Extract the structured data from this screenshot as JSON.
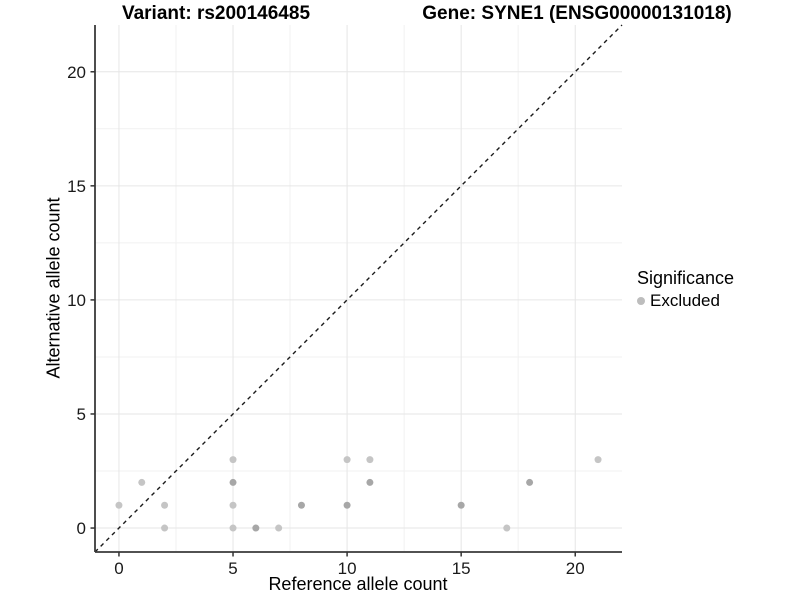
{
  "titles": {
    "left": "Variant: rs200146485",
    "right": "Gene: SYNE1 (ENSG00000131018)"
  },
  "legend": {
    "title": "Significance",
    "items": [
      {
        "label": "Excluded",
        "color": "#bdbdbd"
      }
    ]
  },
  "chart_data": {
    "type": "scatter",
    "title": "Variant: rs200146485 / Gene: SYNE1 (ENSG00000131018)",
    "xlabel": "Reference allele count",
    "ylabel": "Alternative allele count",
    "xlim": [
      -1.05,
      22.05
    ],
    "ylim": [
      -1.05,
      22.05
    ],
    "x_ticks": [
      0,
      5,
      10,
      15,
      20
    ],
    "y_ticks": [
      0,
      5,
      10,
      15,
      20
    ],
    "x_minor_ticks": [
      2.5,
      7.5,
      12.5,
      17.5
    ],
    "y_minor_ticks": [
      2.5,
      7.5,
      12.5,
      17.5
    ],
    "grid": true,
    "legend_position": "right",
    "identity_line": {
      "slope": 1,
      "intercept": 0,
      "style": "dashed",
      "color": "#1a1a1a"
    },
    "colors": {
      "point_single": "#c5c5c5",
      "point_overlap": "#a7a7a7",
      "grid_major": "#e6e6e6",
      "grid_minor": "#f1f1f1",
      "axis_line": "#3a3a3a",
      "tick_mark": "#333333"
    },
    "series": [
      {
        "name": "Excluded",
        "points": [
          {
            "x": 0,
            "y": 1,
            "overlap": false
          },
          {
            "x": 1,
            "y": 2,
            "overlap": false
          },
          {
            "x": 2,
            "y": 0,
            "overlap": false
          },
          {
            "x": 2,
            "y": 1,
            "overlap": false
          },
          {
            "x": 5,
            "y": 0,
            "overlap": false
          },
          {
            "x": 5,
            "y": 1,
            "overlap": false
          },
          {
            "x": 5,
            "y": 2,
            "overlap": true
          },
          {
            "x": 5,
            "y": 3,
            "overlap": false
          },
          {
            "x": 6,
            "y": 0,
            "overlap": true
          },
          {
            "x": 7,
            "y": 0,
            "overlap": false
          },
          {
            "x": 8,
            "y": 1,
            "overlap": true
          },
          {
            "x": 10,
            "y": 1,
            "overlap": true
          },
          {
            "x": 10,
            "y": 3,
            "overlap": false
          },
          {
            "x": 11,
            "y": 2,
            "overlap": true
          },
          {
            "x": 11,
            "y": 3,
            "overlap": false
          },
          {
            "x": 15,
            "y": 1,
            "overlap": true
          },
          {
            "x": 17,
            "y": 0,
            "overlap": false
          },
          {
            "x": 18,
            "y": 2,
            "overlap": true
          },
          {
            "x": 21,
            "y": 3,
            "overlap": false
          }
        ]
      }
    ]
  }
}
